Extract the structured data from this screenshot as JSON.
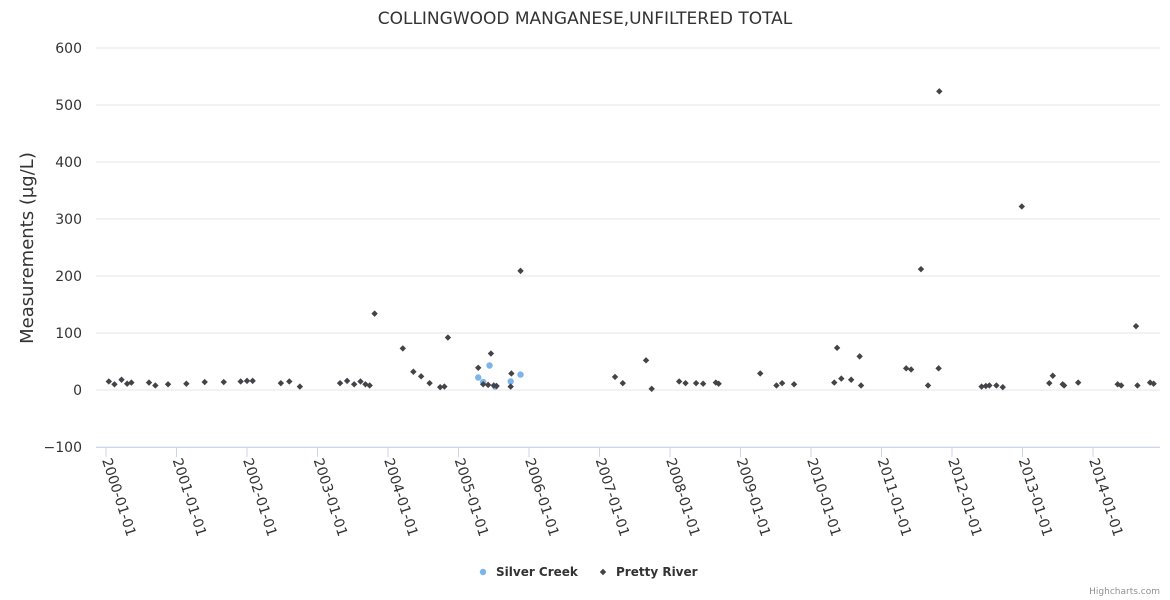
{
  "chart_data": {
    "type": "scatter",
    "title": "COLLINGWOOD MANGANESE,UNFILTERED TOTAL",
    "ylabel": "Measurements (µg/L)",
    "xlabel": "",
    "ylim": [
      -100,
      600
    ],
    "yticks": [
      -100,
      0,
      100,
      200,
      300,
      400,
      500,
      600
    ],
    "ytick_labels": [
      "−100",
      "0",
      "100",
      "200",
      "300",
      "400",
      "500",
      "600"
    ],
    "xlim": [
      2000.0,
      2015.0
    ],
    "xticks": [
      2000,
      2001,
      2002,
      2003,
      2004,
      2005,
      2006,
      2007,
      2008,
      2009,
      2010,
      2011,
      2012,
      2013,
      2014
    ],
    "xtick_labels": [
      "2000-01-01",
      "2001-01-01",
      "2002-01-01",
      "2003-01-01",
      "2004-01-01",
      "2005-01-01",
      "2006-01-01",
      "2007-01-01",
      "2008-01-01",
      "2009-01-01",
      "2010-01-01",
      "2011-01-01",
      "2012-01-01",
      "2013-01-01",
      "2014-01-01"
    ],
    "legend_position": "bottom-center",
    "series": [
      {
        "name": "Silver Creek",
        "color": "#7cb5ec",
        "marker": "circle",
        "points": [
          {
            "x": 2005.28,
            "y": 22
          },
          {
            "x": 2005.35,
            "y": 14
          },
          {
            "x": 2005.44,
            "y": 43
          },
          {
            "x": 2005.52,
            "y": 6
          },
          {
            "x": 2005.74,
            "y": 15
          },
          {
            "x": 2005.88,
            "y": 27
          }
        ]
      },
      {
        "name": "Pretty River",
        "color": "#434348",
        "marker": "diamond",
        "points": [
          {
            "x": 2000.04,
            "y": 15
          },
          {
            "x": 2000.12,
            "y": 10
          },
          {
            "x": 2000.22,
            "y": 18
          },
          {
            "x": 2000.3,
            "y": 11
          },
          {
            "x": 2000.36,
            "y": 13
          },
          {
            "x": 2000.61,
            "y": 13
          },
          {
            "x": 2000.7,
            "y": 8
          },
          {
            "x": 2000.88,
            "y": 10
          },
          {
            "x": 2001.14,
            "y": 11
          },
          {
            "x": 2001.4,
            "y": 14
          },
          {
            "x": 2001.67,
            "y": 14
          },
          {
            "x": 2001.91,
            "y": 15
          },
          {
            "x": 2002.0,
            "y": 16
          },
          {
            "x": 2002.08,
            "y": 16
          },
          {
            "x": 2002.48,
            "y": 12
          },
          {
            "x": 2002.6,
            "y": 15
          },
          {
            "x": 2002.75,
            "y": 6
          },
          {
            "x": 2003.32,
            "y": 12
          },
          {
            "x": 2003.42,
            "y": 16
          },
          {
            "x": 2003.52,
            "y": 10
          },
          {
            "x": 2003.61,
            "y": 15
          },
          {
            "x": 2003.68,
            "y": 10
          },
          {
            "x": 2003.74,
            "y": 8
          },
          {
            "x": 2003.81,
            "y": 134
          },
          {
            "x": 2004.21,
            "y": 73
          },
          {
            "x": 2004.36,
            "y": 32
          },
          {
            "x": 2004.47,
            "y": 24
          },
          {
            "x": 2004.59,
            "y": 12
          },
          {
            "x": 2004.74,
            "y": 5
          },
          {
            "x": 2004.8,
            "y": 6
          },
          {
            "x": 2004.85,
            "y": 92
          },
          {
            "x": 2005.28,
            "y": 39
          },
          {
            "x": 2005.35,
            "y": 10
          },
          {
            "x": 2005.42,
            "y": 9
          },
          {
            "x": 2005.46,
            "y": 64
          },
          {
            "x": 2005.5,
            "y": 8
          },
          {
            "x": 2005.54,
            "y": 7
          },
          {
            "x": 2005.74,
            "y": 6
          },
          {
            "x": 2005.75,
            "y": 29
          },
          {
            "x": 2005.88,
            "y": 209
          },
          {
            "x": 2007.22,
            "y": 23
          },
          {
            "x": 2007.33,
            "y": 12
          },
          {
            "x": 2007.66,
            "y": 52
          },
          {
            "x": 2007.74,
            "y": 2
          },
          {
            "x": 2008.13,
            "y": 15
          },
          {
            "x": 2008.22,
            "y": 12
          },
          {
            "x": 2008.37,
            "y": 12
          },
          {
            "x": 2008.47,
            "y": 11
          },
          {
            "x": 2008.65,
            "y": 13
          },
          {
            "x": 2008.69,
            "y": 11
          },
          {
            "x": 2009.28,
            "y": 29
          },
          {
            "x": 2009.51,
            "y": 8
          },
          {
            "x": 2009.59,
            "y": 12
          },
          {
            "x": 2009.76,
            "y": 10
          },
          {
            "x": 2010.33,
            "y": 13
          },
          {
            "x": 2010.37,
            "y": 74
          },
          {
            "x": 2010.43,
            "y": 20
          },
          {
            "x": 2010.57,
            "y": 18
          },
          {
            "x": 2010.69,
            "y": 59
          },
          {
            "x": 2010.71,
            "y": 8
          },
          {
            "x": 2011.35,
            "y": 38
          },
          {
            "x": 2011.42,
            "y": 36
          },
          {
            "x": 2011.56,
            "y": 212
          },
          {
            "x": 2011.66,
            "y": 8
          },
          {
            "x": 2011.81,
            "y": 38
          },
          {
            "x": 2011.82,
            "y": 524
          },
          {
            "x": 2012.42,
            "y": 6
          },
          {
            "x": 2012.48,
            "y": 7
          },
          {
            "x": 2012.53,
            "y": 8
          },
          {
            "x": 2012.63,
            "y": 8
          },
          {
            "x": 2012.72,
            "y": 5
          },
          {
            "x": 2012.99,
            "y": 322
          },
          {
            "x": 2013.38,
            "y": 12
          },
          {
            "x": 2013.43,
            "y": 25
          },
          {
            "x": 2013.57,
            "y": 10
          },
          {
            "x": 2013.59,
            "y": 8
          },
          {
            "x": 2013.79,
            "y": 13
          },
          {
            "x": 2014.35,
            "y": 10
          },
          {
            "x": 2014.4,
            "y": 8
          },
          {
            "x": 2014.61,
            "y": 112
          },
          {
            "x": 2014.63,
            "y": 8
          },
          {
            "x": 2014.81,
            "y": 13
          },
          {
            "x": 2014.86,
            "y": 11
          }
        ]
      }
    ]
  },
  "credits": "Highcharts.com"
}
